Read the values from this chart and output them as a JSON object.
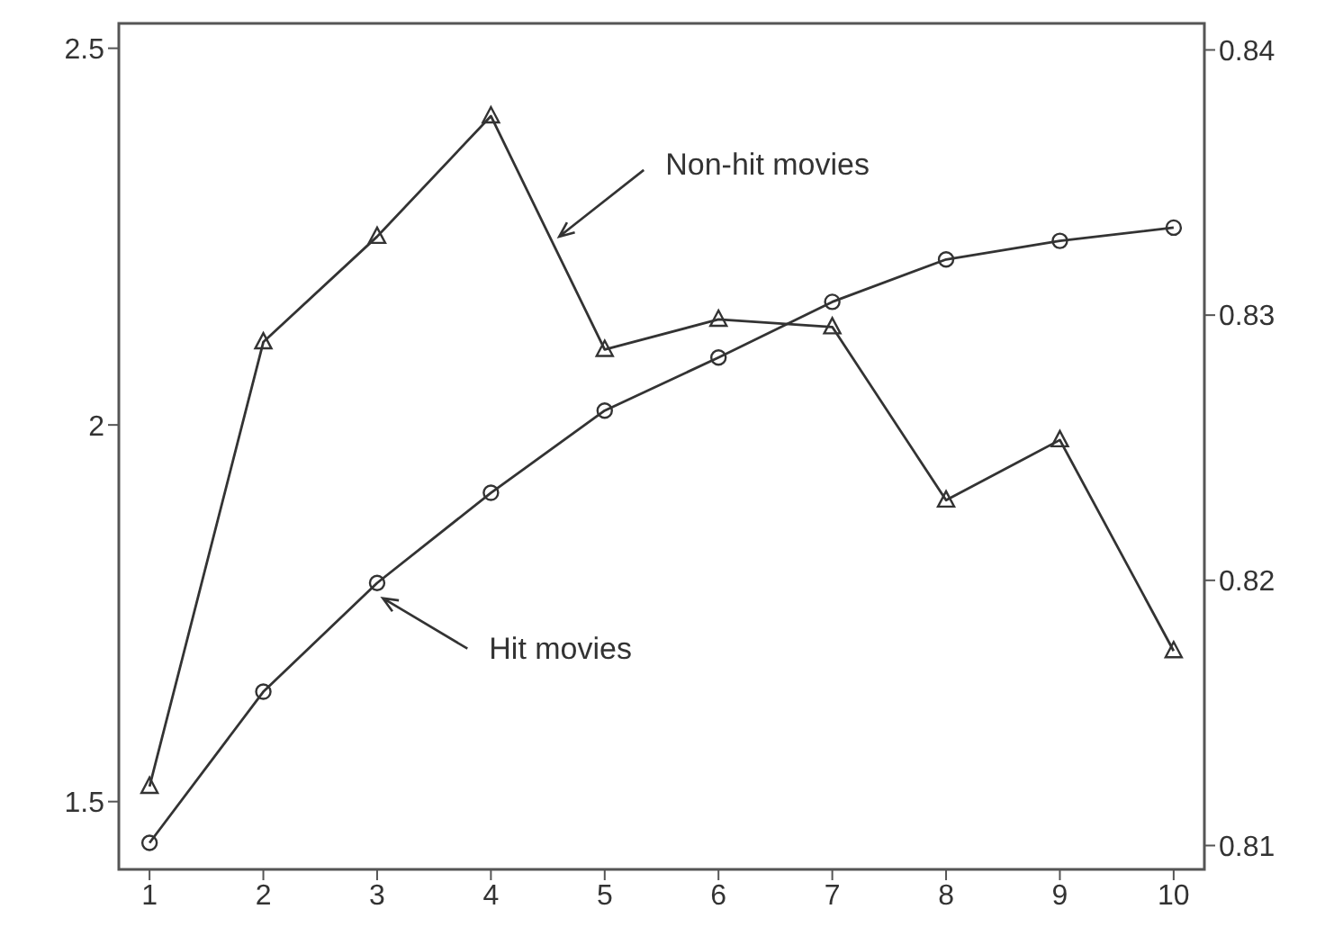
{
  "chart_data": {
    "type": "line",
    "x": [
      1,
      2,
      3,
      4,
      5,
      6,
      7,
      8,
      9,
      10
    ],
    "xlim": [
      0.73,
      10.27
    ],
    "xticks": [
      1,
      2,
      3,
      4,
      5,
      6,
      7,
      8,
      9,
      10
    ],
    "ylim": [
      1.41,
      2.533
    ],
    "yticks": [
      1.5,
      2,
      2.5
    ],
    "y2lim": [
      0.8091,
      0.841
    ],
    "y2ticks": [
      0.81,
      0.82,
      0.83,
      0.84
    ],
    "series": [
      {
        "color": "#333333",
        "marker": "triangle",
        "values": [
          1.52,
          2.11,
          2.25,
          2.41,
          2.1,
          2.14,
          2.13,
          1.9,
          1.98,
          1.7
        ]
      },
      {
        "color": "#333333",
        "marker": "circle",
        "axis": "y2",
        "values": [
          0.8101,
          0.8158,
          0.8199,
          0.8233,
          0.8264,
          0.8284,
          0.8305,
          0.8321,
          0.8328,
          0.8333
        ]
      }
    ],
    "annotations": [
      {
        "text": "Non-hit movies",
        "x": 4.6,
        "y": 2.25
      },
      {
        "text": "Hit movies",
        "x": 3.05,
        "y": 1.77
      }
    ],
    "grid": false,
    "legend": false
  }
}
